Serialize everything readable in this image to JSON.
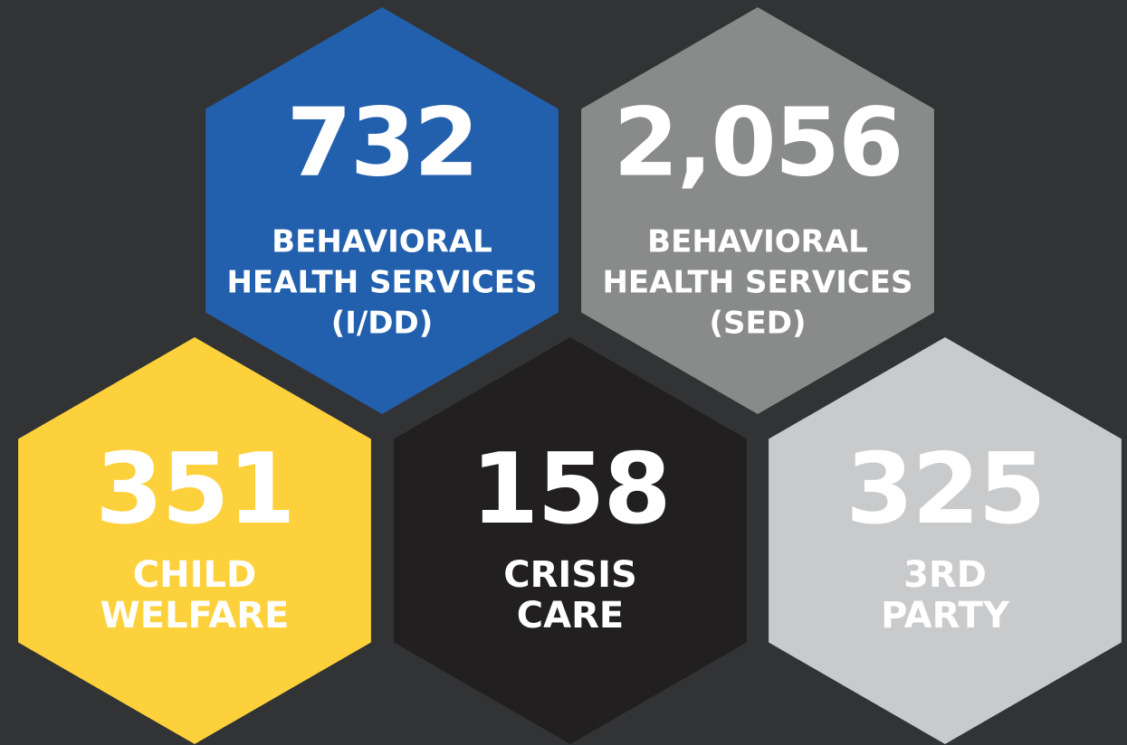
{
  "tiles": [
    {
      "number": "732",
      "lines": [
        "BEHAVIORAL",
        "HEALTH SERVICES",
        "(I/DD)"
      ],
      "color": "#2260ad"
    },
    {
      "number": "2,056",
      "lines": [
        "BEHAVIORAL",
        "HEALTH SERVICES",
        "(SED)"
      ],
      "color": "#898b8b"
    },
    {
      "number": "351",
      "lines": [
        "CHILD",
        "WELFARE"
      ],
      "color": "#fdd13b"
    },
    {
      "number": "158",
      "lines": [
        "CRISIS",
        "CARE"
      ],
      "color": "#221f20"
    },
    {
      "number": "325",
      "lines": [
        "3RD",
        "PARTY"
      ],
      "color": "#c9cacc"
    }
  ]
}
